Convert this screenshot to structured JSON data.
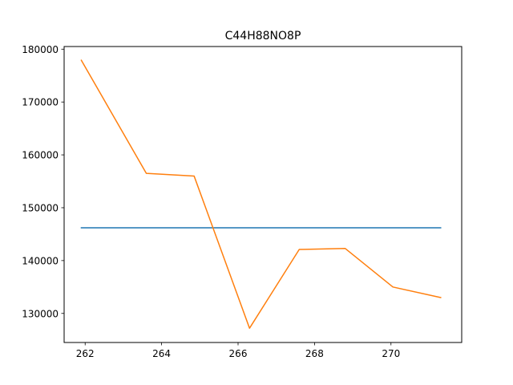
{
  "chart_data": {
    "type": "line",
    "title": "C44H88NO8P",
    "xlabel": "",
    "ylabel": "",
    "xlim": [
      261.45,
      271.85
    ],
    "ylim": [
      124500,
      180500
    ],
    "xticks": [
      262,
      264,
      266,
      268,
      270
    ],
    "xtick_labels": [
      "262",
      "264",
      "266",
      "268",
      "270"
    ],
    "yticks": [
      130000,
      140000,
      150000,
      160000,
      170000,
      180000
    ],
    "ytick_labels": [
      "130000",
      "140000",
      "150000",
      "160000",
      "170000",
      "180000"
    ],
    "grid": false,
    "series": [
      {
        "color": "#1f77b4",
        "x": [
          261.9,
          271.3
        ],
        "y": [
          146200,
          146200
        ]
      },
      {
        "color": "#ff7f0e",
        "x": [
          261.9,
          263.6,
          264.85,
          266.3,
          267.6,
          268.8,
          270.05,
          271.3
        ],
        "y": [
          177900,
          156500,
          156000,
          127200,
          142100,
          142300,
          135000,
          133000
        ]
      }
    ]
  }
}
